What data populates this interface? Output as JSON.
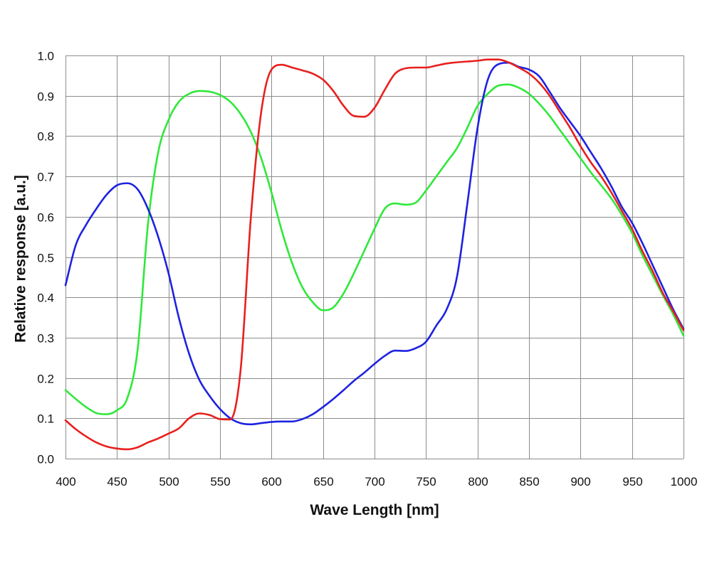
{
  "chart_data": {
    "type": "line",
    "xlabel": "Wave Length [nm]",
    "ylabel": "Relative response [a.u.]",
    "xlim": [
      400,
      1000
    ],
    "ylim": [
      0.0,
      1.0
    ],
    "xticks": [
      "400",
      "450",
      "500",
      "550",
      "600",
      "650",
      "700",
      "750",
      "800",
      "850",
      "900",
      "950",
      "1000"
    ],
    "yticks": [
      "0.0",
      "0.1",
      "0.2",
      "0.3",
      "0.4",
      "0.5",
      "0.6",
      "0.7",
      "0.8",
      "0.9",
      "1.0"
    ],
    "grid": true,
    "legend": "none",
    "x": [
      400,
      410,
      420,
      430,
      440,
      450,
      460,
      470,
      480,
      490,
      500,
      510,
      520,
      530,
      540,
      550,
      560,
      570,
      580,
      590,
      600,
      610,
      620,
      630,
      640,
      650,
      660,
      670,
      680,
      690,
      700,
      710,
      720,
      730,
      740,
      750,
      760,
      770,
      780,
      790,
      800,
      810,
      820,
      830,
      840,
      850,
      860,
      870,
      880,
      890,
      900,
      910,
      920,
      930,
      940,
      950,
      960,
      970,
      980,
      990,
      1000
    ],
    "series": [
      {
        "color": "#2fe83a",
        "values": [
          0.17,
          0.148,
          0.128,
          0.113,
          0.11,
          0.12,
          0.15,
          0.27,
          0.58,
          0.76,
          0.84,
          0.885,
          0.905,
          0.912,
          0.91,
          0.902,
          0.885,
          0.855,
          0.81,
          0.745,
          0.66,
          0.565,
          0.485,
          0.425,
          0.388,
          0.368,
          0.375,
          0.41,
          0.46,
          0.515,
          0.57,
          0.62,
          0.633,
          0.63,
          0.635,
          0.665,
          0.7,
          0.735,
          0.77,
          0.82,
          0.875,
          0.905,
          0.925,
          0.928,
          0.92,
          0.905,
          0.88,
          0.85,
          0.815,
          0.78,
          0.745,
          0.71,
          0.678,
          0.645,
          0.605,
          0.56,
          0.505,
          0.455,
          0.405,
          0.358,
          0.305
        ]
      },
      {
        "color": "#1e22e0",
        "values": [
          0.43,
          0.53,
          0.58,
          0.62,
          0.655,
          0.678,
          0.683,
          0.668,
          0.62,
          0.55,
          0.46,
          0.35,
          0.26,
          0.195,
          0.155,
          0.123,
          0.1,
          0.088,
          0.085,
          0.088,
          0.091,
          0.092,
          0.092,
          0.098,
          0.11,
          0.128,
          0.148,
          0.17,
          0.193,
          0.213,
          0.235,
          0.255,
          0.268,
          0.267,
          0.274,
          0.29,
          0.33,
          0.37,
          0.45,
          0.63,
          0.82,
          0.94,
          0.978,
          0.982,
          0.972,
          0.965,
          0.948,
          0.91,
          0.87,
          0.835,
          0.8,
          0.76,
          0.72,
          0.675,
          0.625,
          0.585,
          0.535,
          0.48,
          0.425,
          0.37,
          0.322
        ]
      },
      {
        "color": "#e8201e",
        "values": [
          0.095,
          0.073,
          0.055,
          0.04,
          0.03,
          0.025,
          0.023,
          0.028,
          0.04,
          0.05,
          0.062,
          0.075,
          0.1,
          0.112,
          0.108,
          0.098,
          0.097,
          0.22,
          0.6,
          0.86,
          0.965,
          0.977,
          0.97,
          0.963,
          0.955,
          0.94,
          0.912,
          0.875,
          0.85,
          0.848,
          0.87,
          0.915,
          0.955,
          0.968,
          0.97,
          0.97,
          0.975,
          0.98,
          0.983,
          0.985,
          0.987,
          0.99,
          0.99,
          0.983,
          0.97,
          0.955,
          0.932,
          0.9,
          0.86,
          0.82,
          0.775,
          0.735,
          0.7,
          0.66,
          0.615,
          0.57,
          0.515,
          0.465,
          0.41,
          0.365,
          0.318
        ]
      }
    ]
  }
}
